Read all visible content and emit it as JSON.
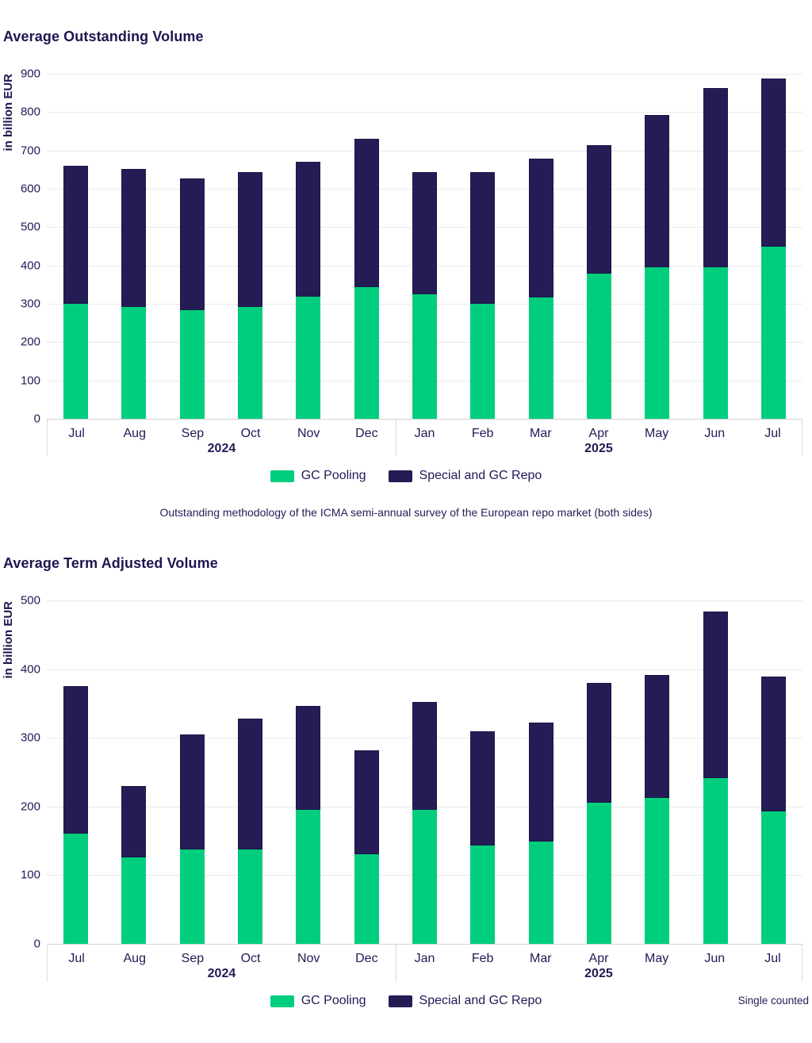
{
  "chart_data": [
    {
      "type": "bar",
      "stacked": true,
      "title": "Average Outstanding Volume",
      "ylabel": "in billion EUR",
      "ylim": [
        0,
        900
      ],
      "ytick_step": 100,
      "grid": true,
      "legend_position": "bottom-center",
      "categories": [
        "Jul",
        "Aug",
        "Sep",
        "Oct",
        "Nov",
        "Dec",
        "Jan",
        "Feb",
        "Mar",
        "Apr",
        "May",
        "Jun",
        "Jul"
      ],
      "year_groups": [
        {
          "label": "2024",
          "count": 6
        },
        {
          "label": "2025",
          "count": 7
        }
      ],
      "series": [
        {
          "name": "GC Pooling",
          "color": "#00ce7e",
          "values": [
            300,
            292,
            283,
            292,
            318,
            343,
            325,
            300,
            316,
            379,
            396,
            396,
            448
          ]
        },
        {
          "name": "Special and GC Repo",
          "color": "#241d55",
          "values": [
            360,
            360,
            343,
            351,
            352,
            388,
            318,
            343,
            362,
            334,
            396,
            467,
            440
          ]
        }
      ],
      "stack_totals": [
        660,
        652,
        626,
        643,
        670,
        731,
        643,
        643,
        678,
        713,
        792,
        863,
        888
      ],
      "footnote": "Outstanding methodology of the ICMA semi-annual survey of the European repo market (both sides)",
      "note_right": ""
    },
    {
      "type": "bar",
      "stacked": true,
      "title": "Average Term Adjusted Volume",
      "ylabel": "in billion EUR",
      "ylim": [
        0,
        500
      ],
      "ytick_step": 100,
      "grid": true,
      "legend_position": "bottom-center",
      "categories": [
        "Jul",
        "Aug",
        "Sep",
        "Oct",
        "Nov",
        "Dec",
        "Jan",
        "Feb",
        "Mar",
        "Apr",
        "May",
        "Jun",
        "Jul"
      ],
      "year_groups": [
        {
          "label": "2024",
          "count": 6
        },
        {
          "label": "2025",
          "count": 7
        }
      ],
      "series": [
        {
          "name": "GC Pooling",
          "color": "#00ce7e",
          "values": [
            160,
            126,
            137,
            137,
            195,
            131,
            195,
            143,
            149,
            206,
            212,
            241,
            193
          ]
        },
        {
          "name": "Special and GC Repo",
          "color": "#241d55",
          "values": [
            215,
            104,
            168,
            191,
            151,
            151,
            157,
            167,
            173,
            174,
            180,
            243,
            196
          ]
        }
      ],
      "stack_totals": [
        375,
        230,
        305,
        328,
        346,
        282,
        352,
        310,
        322,
        380,
        392,
        484,
        389
      ],
      "footnote": "",
      "note_right": "Single counted"
    }
  ],
  "colors": {
    "gc_pooling": "#00ce7e",
    "special_gc_repo": "#241d55",
    "text": "#201a55",
    "gridline": "#e9e9e9"
  }
}
